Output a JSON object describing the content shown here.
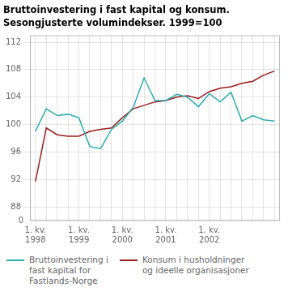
{
  "chart_data": {
    "type": "line",
    "title": "Bruttoinvestering i fast kapital og konsum.",
    "subtitle": "Sesongjusterte volumindekser. 1999=100",
    "categories": [
      "1. kv.\n1998",
      null,
      null,
      null,
      "1. kv.\n1999",
      null,
      null,
      null,
      "1. kv.\n2000",
      null,
      null,
      null,
      "1. kv.\n2001",
      null,
      null,
      null,
      "1. kv.\n2002",
      null,
      null,
      null,
      null,
      null,
      null
    ],
    "series": [
      {
        "name": "Bruttoinvestering i\nfast kapital for\nFastlands-Norge",
        "color": "#2AACAC",
        "values": [
          99.0,
          102.3,
          101.3,
          101.5,
          101.0,
          96.8,
          96.5,
          99.3,
          100.5,
          102.5,
          106.8,
          103.5,
          103.5,
          104.4,
          104.0,
          102.6,
          104.5,
          103.3,
          104.7,
          100.5,
          101.3,
          100.7,
          100.5
        ]
      },
      {
        "name": "Konsum i husholdninger\nog ideelle organisasjoner",
        "color": "#9B1C1C",
        "values": [
          91.7,
          99.5,
          98.5,
          98.3,
          98.3,
          99.0,
          99.3,
          99.5,
          101.0,
          102.3,
          102.8,
          103.3,
          103.5,
          104.0,
          104.2,
          103.8,
          104.8,
          105.3,
          105.5,
          106.0,
          106.3,
          107.2,
          107.8
        ]
      }
    ],
    "ylim": [
      86,
      113
    ],
    "yticks": [
      88,
      92,
      96,
      100,
      104,
      108,
      112
    ],
    "annotations": [
      "0"
    ],
    "grid": true,
    "legend": "bottom"
  }
}
